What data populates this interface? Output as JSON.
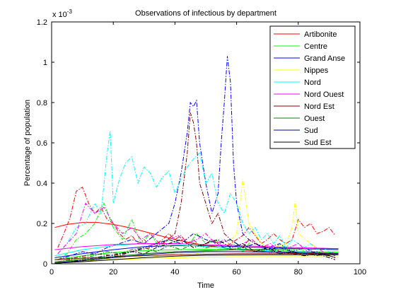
{
  "chart_data": {
    "type": "line",
    "title": "Observations of infectious by department",
    "xlabel": "Time",
    "ylabel": "Percentage of population",
    "y_exponent_label": "x 10",
    "y_exponent_power": "-3",
    "xlim": [
      0,
      100
    ],
    "ylim": [
      0,
      1.2
    ],
    "xticks": [
      "0",
      "20",
      "40",
      "60",
      "80",
      "100"
    ],
    "yticks": [
      "0",
      "0.2",
      "0.4",
      "0.6",
      "0.8",
      "1",
      "1.2"
    ],
    "grid": false,
    "legend_position": "top-right",
    "series": [
      {
        "name": "Artibonite",
        "color": "#ff0000",
        "fit_x": [
          1,
          5,
          10,
          15,
          20,
          25,
          30,
          35,
          40,
          45,
          50,
          55,
          60,
          65,
          70,
          75,
          80,
          85,
          90,
          93
        ],
        "fit_y": [
          0.18,
          0.195,
          0.205,
          0.205,
          0.195,
          0.18,
          0.16,
          0.14,
          0.12,
          0.105,
          0.09,
          0.08,
          0.07,
          0.065,
          0.06,
          0.055,
          0.052,
          0.05,
          0.048,
          0.047
        ],
        "obs_x": [
          2,
          4,
          6,
          8,
          10,
          12,
          14,
          16,
          18,
          20,
          22,
          24,
          26,
          28,
          30,
          32,
          34,
          36,
          38,
          40,
          42,
          44,
          46,
          48,
          50,
          52,
          54,
          56,
          58,
          60,
          62,
          64,
          66,
          68,
          70,
          72,
          74,
          76,
          78,
          80,
          82,
          84,
          86,
          88,
          90,
          92
        ],
        "obs_y": [
          0.08,
          0.15,
          0.23,
          0.36,
          0.38,
          0.3,
          0.25,
          0.28,
          0.22,
          0.2,
          0.15,
          0.12,
          0.14,
          0.1,
          0.12,
          0.09,
          0.1,
          0.12,
          0.15,
          0.12,
          0.14,
          0.1,
          0.12,
          0.09,
          0.1,
          0.12,
          0.1,
          0.08,
          0.1,
          0.12,
          0.14,
          0.18,
          0.14,
          0.1,
          0.12,
          0.15,
          0.12,
          0.1,
          0.12,
          0.22,
          0.18,
          0.2,
          0.15,
          0.16,
          0.18,
          0.14
        ]
      },
      {
        "name": "Centre",
        "color": "#00ff00",
        "fit_x": [
          1,
          10,
          20,
          30,
          40,
          50,
          60,
          70,
          80,
          93
        ],
        "fit_y": [
          0.02,
          0.04,
          0.055,
          0.065,
          0.07,
          0.072,
          0.07,
          0.066,
          0.062,
          0.058
        ],
        "obs_x": [
          2,
          5,
          8,
          11,
          14,
          17,
          20,
          23,
          26,
          29,
          32,
          35,
          38,
          41,
          44,
          47,
          50,
          53,
          56,
          59,
          62,
          65,
          68,
          71,
          74,
          77,
          80,
          83,
          86,
          89,
          92
        ],
        "obs_y": [
          0.02,
          0.05,
          0.12,
          0.15,
          0.2,
          0.3,
          0.18,
          0.12,
          0.22,
          0.1,
          0.15,
          0.08,
          0.12,
          0.1,
          0.08,
          0.15,
          0.1,
          0.12,
          0.08,
          0.1,
          0.06,
          0.12,
          0.08,
          0.05,
          0.1,
          0.06,
          0.08,
          0.05,
          0.06,
          0.04,
          0.05
        ]
      },
      {
        "name": "Grand Anse",
        "color": "#0000ff",
        "fit_x": [
          1,
          10,
          20,
          30,
          40,
          50,
          60,
          70,
          80,
          93
        ],
        "fit_y": [
          0.03,
          0.05,
          0.07,
          0.085,
          0.09,
          0.09,
          0.085,
          0.08,
          0.075,
          0.07
        ],
        "obs_x": [
          2,
          6,
          10,
          14,
          18,
          22,
          26,
          30,
          34,
          38,
          40,
          42,
          44,
          45,
          46,
          47,
          48,
          50,
          52,
          54,
          55,
          56,
          57,
          58,
          59,
          60,
          62,
          64,
          66,
          70,
          74,
          78,
          82,
          86,
          90,
          92
        ],
        "obs_y": [
          0.02,
          0.04,
          0.06,
          0.05,
          0.08,
          0.1,
          0.12,
          0.1,
          0.15,
          0.2,
          0.3,
          0.45,
          0.65,
          0.8,
          0.78,
          0.81,
          0.6,
          0.4,
          0.25,
          0.35,
          0.6,
          0.8,
          1.03,
          0.9,
          0.5,
          0.3,
          0.15,
          0.12,
          0.1,
          0.08,
          0.1,
          0.06,
          0.08,
          0.05,
          0.04,
          0.03
        ]
      },
      {
        "name": "Nippes",
        "color": "#ffff00",
        "fit_x": [
          1,
          20,
          40,
          60,
          80,
          93
        ],
        "fit_y": [
          0.01,
          0.02,
          0.03,
          0.035,
          0.035,
          0.034
        ],
        "obs_x": [
          2,
          8,
          14,
          20,
          26,
          32,
          38,
          44,
          50,
          56,
          60,
          62,
          64,
          68,
          72,
          76,
          78,
          79,
          80,
          84,
          88,
          92
        ],
        "obs_y": [
          0.01,
          0.02,
          0.03,
          0.02,
          0.04,
          0.03,
          0.05,
          0.04,
          0.06,
          0.08,
          0.15,
          0.42,
          0.2,
          0.1,
          0.08,
          0.1,
          0.18,
          0.31,
          0.15,
          0.1,
          0.06,
          0.04
        ]
      },
      {
        "name": "Nord",
        "color": "#00ffff",
        "fit_x": [
          1,
          10,
          20,
          30,
          40,
          50,
          60,
          70,
          80,
          93
        ],
        "fit_y": [
          0.04,
          0.07,
          0.09,
          0.1,
          0.095,
          0.085,
          0.075,
          0.065,
          0.058,
          0.052
        ],
        "obs_x": [
          2,
          5,
          8,
          11,
          14,
          16,
          18,
          19,
          20,
          22,
          24,
          26,
          28,
          30,
          32,
          34,
          36,
          38,
          40,
          42,
          44,
          46,
          48,
          50,
          52,
          54,
          56,
          58,
          60,
          62,
          64,
          66,
          68,
          70,
          72,
          74,
          76,
          78,
          80,
          82,
          84,
          86,
          88,
          90,
          92
        ],
        "obs_y": [
          0.05,
          0.1,
          0.18,
          0.2,
          0.3,
          0.25,
          0.55,
          0.66,
          0.3,
          0.42,
          0.5,
          0.53,
          0.4,
          0.48,
          0.45,
          0.38,
          0.43,
          0.46,
          0.35,
          0.42,
          0.48,
          0.52,
          0.55,
          0.4,
          0.45,
          0.3,
          0.25,
          0.35,
          0.3,
          0.2,
          0.15,
          0.18,
          0.12,
          0.15,
          0.1,
          0.14,
          0.08,
          0.12,
          0.1,
          0.08,
          0.1,
          0.07,
          0.08,
          0.06,
          0.05
        ]
      },
      {
        "name": "Nord Ouest",
        "color": "#ff00ff",
        "fit_x": [
          1,
          10,
          20,
          30,
          40,
          50,
          60,
          70,
          80,
          93
        ],
        "fit_y": [
          0.07,
          0.085,
          0.095,
          0.1,
          0.1,
          0.095,
          0.09,
          0.085,
          0.08,
          0.075
        ],
        "obs_x": [
          2,
          5,
          8,
          11,
          14,
          17,
          20,
          23,
          26,
          29,
          32,
          35,
          38,
          41,
          44,
          47,
          50,
          53,
          56,
          59,
          62,
          65,
          68,
          71,
          74,
          77,
          80,
          83,
          86,
          89,
          92
        ],
        "obs_y": [
          0.05,
          0.1,
          0.15,
          0.3,
          0.25,
          0.28,
          0.2,
          0.15,
          0.18,
          0.12,
          0.15,
          0.1,
          0.12,
          0.14,
          0.1,
          0.12,
          0.15,
          0.1,
          0.12,
          0.08,
          0.1,
          0.12,
          0.08,
          0.1,
          0.06,
          0.08,
          0.1,
          0.06,
          0.08,
          0.05,
          0.06
        ]
      },
      {
        "name": "Nord Est",
        "color": "#880000",
        "fit_x": [
          1,
          20,
          40,
          60,
          80,
          93
        ],
        "fit_y": [
          0.02,
          0.035,
          0.045,
          0.05,
          0.05,
          0.05
        ],
        "obs_x": [
          2,
          8,
          14,
          20,
          26,
          32,
          36,
          40,
          42,
          44,
          45,
          46,
          47,
          48,
          50,
          52,
          54,
          56,
          58,
          60,
          62,
          64,
          66,
          70,
          74,
          78,
          82,
          86,
          90,
          92
        ],
        "obs_y": [
          0.02,
          0.03,
          0.05,
          0.04,
          0.06,
          0.08,
          0.1,
          0.15,
          0.3,
          0.55,
          0.75,
          0.7,
          0.6,
          0.4,
          0.3,
          0.2,
          0.25,
          0.15,
          0.12,
          0.1,
          0.08,
          0.12,
          0.1,
          0.08,
          0.06,
          0.05,
          0.04,
          0.05,
          0.04,
          0.03
        ]
      },
      {
        "name": "Ouest",
        "color": "#008800",
        "fit_x": [
          1,
          10,
          20,
          30,
          40,
          50,
          60,
          70,
          80,
          93
        ],
        "fit_y": [
          0.01,
          0.02,
          0.035,
          0.05,
          0.06,
          0.065,
          0.07,
          0.072,
          0.074,
          0.075
        ],
        "obs_x": [
          2,
          6,
          10,
          14,
          18,
          22,
          26,
          30,
          34,
          38,
          42,
          46,
          50,
          54,
          58,
          62,
          66,
          70,
          74,
          78,
          82,
          86,
          90,
          92
        ],
        "obs_y": [
          0.01,
          0.02,
          0.03,
          0.04,
          0.06,
          0.05,
          0.07,
          0.08,
          0.06,
          0.09,
          0.07,
          0.1,
          0.08,
          0.09,
          0.07,
          0.08,
          0.06,
          0.07,
          0.05,
          0.06,
          0.05,
          0.04,
          0.05,
          0.04
        ]
      },
      {
        "name": "Sud",
        "color": "#000088",
        "fit_x": [
          1,
          10,
          20,
          30,
          40,
          50,
          60,
          70,
          80,
          93
        ],
        "fit_y": [
          0.005,
          0.015,
          0.03,
          0.045,
          0.055,
          0.06,
          0.06,
          0.058,
          0.055,
          0.052
        ],
        "obs_x": [
          2,
          6,
          10,
          14,
          18,
          22,
          26,
          30,
          34,
          38,
          42,
          46,
          50,
          54,
          58,
          62,
          66,
          70,
          74,
          78,
          82,
          86,
          90,
          92
        ],
        "obs_y": [
          0.005,
          0.01,
          0.02,
          0.03,
          0.04,
          0.05,
          0.06,
          0.08,
          0.1,
          0.12,
          0.1,
          0.15,
          0.12,
          0.1,
          0.12,
          0.08,
          0.1,
          0.07,
          0.08,
          0.06,
          0.05,
          0.06,
          0.04,
          0.03
        ]
      },
      {
        "name": "Sud Est",
        "color": "#000000",
        "fit_x": [
          1,
          10,
          20,
          30,
          40,
          50,
          60,
          70,
          80,
          93
        ],
        "fit_y": [
          0.003,
          0.01,
          0.02,
          0.03,
          0.038,
          0.042,
          0.044,
          0.045,
          0.045,
          0.045
        ],
        "obs_x": [
          2,
          6,
          10,
          14,
          18,
          22,
          26,
          30,
          34,
          38,
          42,
          46,
          50,
          54,
          58,
          62,
          66,
          70,
          74,
          78,
          82,
          86,
          90,
          92
        ],
        "obs_y": [
          0.003,
          0.008,
          0.015,
          0.02,
          0.03,
          0.04,
          0.06,
          0.05,
          0.08,
          0.1,
          0.12,
          0.08,
          0.1,
          0.12,
          0.08,
          0.1,
          0.06,
          0.08,
          0.05,
          0.06,
          0.04,
          0.05,
          0.03,
          0.02
        ]
      }
    ]
  }
}
